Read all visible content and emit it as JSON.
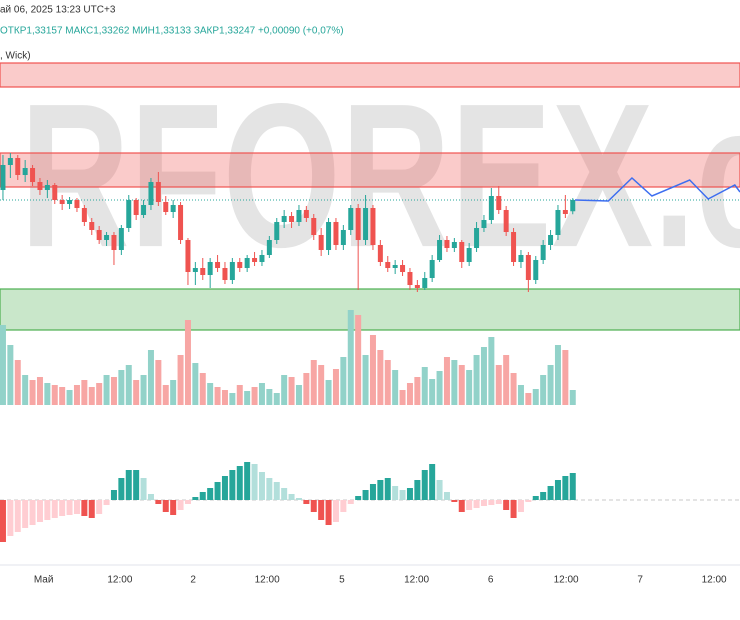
{
  "chart_data": [
    {
      "type": "candlestick",
      "date_label": "ай 06, 2025 13:23 UTC+3",
      "ohlc_legend": "ОТКР1,33157 МАКС1,33262 МИН1,33133 ЗАКР1,33247 +0,00090 (+0,07%)",
      "indicator_label": ", Wick)",
      "watermark": "RFOREX.c",
      "up_color": "#26a69a",
      "down_color": "#ef5350",
      "xlim": [
        -0.4,
        99.6
      ],
      "ylim": [
        1.32127,
        1.34527
      ],
      "xticks": [
        {
          "value": 5.5,
          "label": "Май"
        },
        {
          "value": 15.8,
          "label": "12:00"
        },
        {
          "value": 25.7,
          "label": "2"
        },
        {
          "value": 35.7,
          "label": "12:00"
        },
        {
          "value": 45.8,
          "label": "5"
        },
        {
          "value": 55.9,
          "label": "12:00"
        },
        {
          "value": 65.9,
          "label": "6"
        },
        {
          "value": 76.1,
          "label": "12:00"
        },
        {
          "value": 86.1,
          "label": "7"
        },
        {
          "value": 96.1,
          "label": "12:00"
        }
      ],
      "open": [
        1.33327,
        1.33527,
        1.33583,
        1.33447,
        1.33503,
        1.33391,
        1.33327,
        1.33367,
        1.33247,
        1.33215,
        1.33247,
        1.33183,
        1.33071,
        1.33007,
        1.32927,
        1.32967,
        1.32847,
        1.33023,
        1.33247,
        1.33127,
        1.33207,
        1.33391,
        1.33231,
        1.33151,
        1.33207,
        1.32927,
        1.32671,
        1.32703,
        1.32647,
        1.32751,
        1.32703,
        1.32607,
        1.32751,
        1.32703,
        1.32783,
        1.32751,
        1.32807,
        1.32927,
        1.33071,
        1.33119,
        1.33071,
        1.33167,
        1.33103,
        1.32967,
        1.32847,
        1.33071,
        1.32887,
        1.33007,
        1.33183,
        1.32927,
        1.33183,
        1.32887,
        1.32751,
        1.32703,
        1.32727,
        1.32671,
        1.32567,
        1.32543,
        1.32623,
        1.32767,
        1.32927,
        1.32863,
        1.32911,
        1.32751,
        1.32863,
        1.33023,
        1.33087,
        1.33279,
        1.33167,
        1.32991,
        1.32751,
        1.32807,
        1.32607,
        1.32767,
        1.32887,
        1.32967,
        1.33167,
        1.33157
      ],
      "high": [
        1.33607,
        1.33623,
        1.33607,
        1.33567,
        1.33527,
        1.33423,
        1.33407,
        1.33383,
        1.33287,
        1.33271,
        1.33263,
        1.33207,
        1.33103,
        1.33039,
        1.32991,
        1.32991,
        1.33047,
        1.33287,
        1.33263,
        1.33247,
        1.33423,
        1.33471,
        1.33279,
        1.33247,
        1.33231,
        1.32943,
        1.32751,
        1.32783,
        1.32783,
        1.32807,
        1.32751,
        1.32783,
        1.32783,
        1.32807,
        1.32831,
        1.32847,
        1.32959,
        1.33103,
        1.33167,
        1.33151,
        1.33207,
        1.33199,
        1.33135,
        1.33023,
        1.33103,
        1.33103,
        1.33047,
        1.33207,
        1.33215,
        1.33287,
        1.33207,
        1.32927,
        1.32799,
        1.32767,
        1.32767,
        1.32703,
        1.32607,
        1.32671,
        1.32807,
        1.32967,
        1.32959,
        1.32943,
        1.32927,
        1.32903,
        1.33071,
        1.33127,
        1.33343,
        1.33359,
        1.33199,
        1.33023,
        1.32847,
        1.32831,
        1.32799,
        1.32927,
        1.33007,
        1.33207,
        1.33287,
        1.33262
      ],
      "low": [
        1.33247,
        1.33423,
        1.33407,
        1.33391,
        1.33359,
        1.33287,
        1.33263,
        1.33215,
        1.33167,
        1.33175,
        1.33151,
        1.33039,
        1.32967,
        1.32895,
        1.32879,
        1.32727,
        1.32807,
        1.32991,
        1.33087,
        1.33103,
        1.33167,
        1.33199,
        1.33127,
        1.33103,
        1.32895,
        1.32567,
        1.32567,
        1.32607,
        1.32543,
        1.32671,
        1.32575,
        1.32575,
        1.32671,
        1.32671,
        1.32719,
        1.32719,
        1.32783,
        1.32895,
        1.33023,
        1.33023,
        1.33039,
        1.33071,
        1.32927,
        1.32799,
        1.32807,
        1.32847,
        1.32847,
        1.32967,
        1.32527,
        1.32887,
        1.32847,
        1.32719,
        1.32671,
        1.32655,
        1.32639,
        1.32527,
        1.32511,
        1.32527,
        1.32591,
        1.32751,
        1.32831,
        1.32831,
        1.32703,
        1.32719,
        1.32831,
        1.32991,
        1.33055,
        1.33135,
        1.32959,
        1.32719,
        1.32703,
        1.32511,
        1.32575,
        1.32735,
        1.32847,
        1.32927,
        1.33103,
        1.33133
      ],
      "close": [
        1.33527,
        1.33583,
        1.33447,
        1.33503,
        1.33391,
        1.33327,
        1.33367,
        1.33247,
        1.33215,
        1.33247,
        1.33183,
        1.33071,
        1.33007,
        1.32927,
        1.32967,
        1.32847,
        1.33023,
        1.33247,
        1.33127,
        1.33207,
        1.33391,
        1.33231,
        1.33151,
        1.33207,
        1.32927,
        1.32671,
        1.32703,
        1.32647,
        1.32751,
        1.32703,
        1.32607,
        1.32751,
        1.32703,
        1.32783,
        1.32751,
        1.32807,
        1.32927,
        1.33071,
        1.33119,
        1.33071,
        1.33167,
        1.33103,
        1.32967,
        1.32847,
        1.33071,
        1.32887,
        1.33007,
        1.33183,
        1.32927,
        1.33183,
        1.32887,
        1.32751,
        1.32703,
        1.32727,
        1.32671,
        1.32567,
        1.32543,
        1.32623,
        1.32767,
        1.32927,
        1.32863,
        1.32911,
        1.32751,
        1.32863,
        1.33023,
        1.33087,
        1.33279,
        1.33167,
        1.32991,
        1.32751,
        1.32807,
        1.32607,
        1.32767,
        1.32887,
        1.32967,
        1.33167,
        1.33135,
        1.33247
      ],
      "zones": [
        {
          "color": "#ef5350",
          "values": [
            1.34343,
            1.34151
          ]
        },
        {
          "color": "#ef5350",
          "values": [
            1.33623,
            1.33351
          ]
        },
        {
          "color": "#4caf50",
          "values": [
            1.32535,
            1.32207
          ]
        }
      ],
      "projection": {
        "color": "#3d6ef0",
        "x": [
          77.3,
          81.8,
          85,
          87.7,
          92.8,
          95.3,
          98.9,
          99.6
        ],
        "values": [
          1.33247,
          1.33239,
          1.33423,
          1.33279,
          1.33407,
          1.33255,
          1.33367,
          1.33311
        ]
      }
    },
    {
      "type": "volume",
      "colors": [
        "#92d2c9",
        "#f7a6a4"
      ],
      "ylim": [
        0,
        100
      ],
      "values": [
        80,
        60,
        45,
        30,
        25,
        28,
        22,
        20,
        18,
        15,
        20,
        25,
        18,
        22,
        30,
        28,
        35,
        40,
        25,
        30,
        55,
        45,
        20,
        25,
        50,
        85,
        42,
        32,
        22,
        18,
        15,
        12,
        20,
        14,
        18,
        22,
        16,
        12,
        30,
        28,
        20,
        32,
        45,
        40,
        25,
        36,
        48,
        95,
        90,
        50,
        70,
        55,
        45,
        35,
        15,
        22,
        28,
        38,
        26,
        34,
        48,
        45,
        40,
        35,
        50,
        58,
        68,
        40,
        50,
        32,
        20,
        12,
        16,
        30,
        40,
        60,
        55,
        15
      ]
    },
    {
      "type": "histogram",
      "colors": [
        "#26a69a",
        "#b2dfdb",
        "#ef5350",
        "#ffcdd2"
      ],
      "ylim": [
        -50,
        50
      ],
      "values": [
        -42,
        -36,
        -32,
        -28,
        -25,
        -22,
        -20,
        -18,
        -16,
        -15,
        -14,
        -16,
        -18,
        -14,
        -5,
        10,
        22,
        30,
        30,
        22,
        6,
        -4,
        -12,
        -15,
        -10,
        -4,
        3,
        8,
        12,
        18,
        24,
        30,
        34,
        38,
        36,
        28,
        22,
        18,
        12,
        6,
        2,
        -4,
        -12,
        -20,
        -25,
        -22,
        -12,
        -4,
        4,
        10,
        16,
        20,
        22,
        14,
        10,
        12,
        20,
        30,
        36,
        20,
        8,
        -2,
        -12,
        -10,
        -8,
        -6,
        -5,
        -4,
        -10,
        -18,
        -12,
        -2,
        4,
        8,
        14,
        20,
        24,
        27
      ]
    }
  ]
}
